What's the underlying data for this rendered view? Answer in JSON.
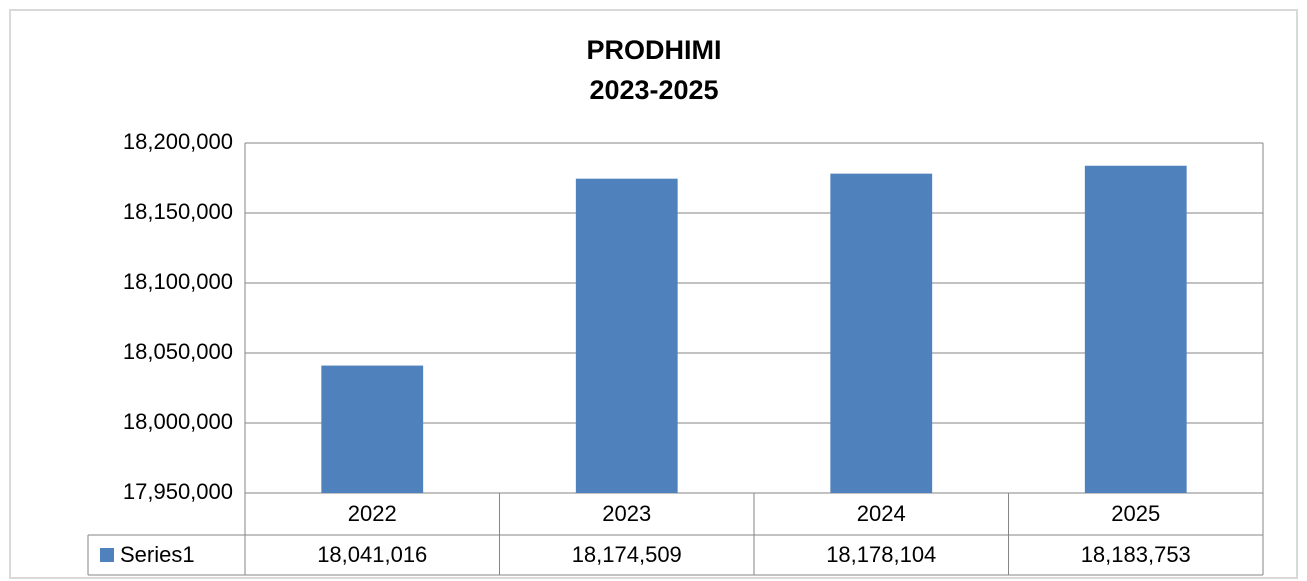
{
  "chart_data": {
    "type": "bar",
    "title": [
      "PRODHIMI",
      "2023-2025"
    ],
    "categories": [
      "2022",
      "2023",
      "2024",
      "2025"
    ],
    "series": [
      {
        "name": "Series1",
        "color": "#4f81bd",
        "values": [
          18041016,
          18174509,
          18178104,
          18183753
        ],
        "value_labels": [
          "18,041,016",
          "18,174,509",
          "18,178,104",
          "18,183,753"
        ]
      }
    ],
    "ylim": [
      17950000,
      18200000
    ],
    "yticks": [
      {
        "value": 17950000,
        "label": "17,950,000"
      },
      {
        "value": 18000000,
        "label": "18,000,000"
      },
      {
        "value": 18050000,
        "label": "18,050,000"
      },
      {
        "value": 18100000,
        "label": "18,100,000"
      },
      {
        "value": 18150000,
        "label": "18,150,000"
      },
      {
        "value": 18200000,
        "label": "18,200,000"
      }
    ],
    "grid": true,
    "data_table": true
  }
}
